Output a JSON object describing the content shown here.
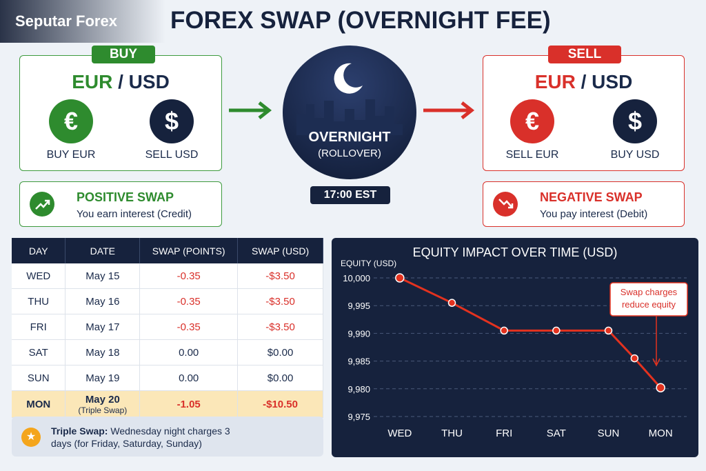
{
  "header": {
    "brand": "Seputar Forex",
    "title": "FOREX SWAP (OVERNIGHT FEE)"
  },
  "buy": {
    "badge": "BUY",
    "pair_base": "EUR",
    "pair_sep": "/",
    "pair_quote": "USD",
    "left_icon": "€",
    "left_label": "BUY EUR",
    "right_icon": "$",
    "right_label": "SELL USD"
  },
  "sell": {
    "badge": "SELL",
    "pair_base": "EUR",
    "pair_sep": "/",
    "pair_quote": "USD",
    "left_icon": "€",
    "left_label": "SELL EUR",
    "right_icon": "$",
    "right_label": "BUY USD"
  },
  "overnight": {
    "title": "OVERNIGHT",
    "subtitle": "(ROLLOVER)",
    "time": "17:00 EST"
  },
  "positive": {
    "title": "POSITIVE SWAP",
    "text": "You earn interest (Credit)"
  },
  "negative": {
    "title": "NEGATIVE SWAP",
    "text": "You pay interest (Debit)"
  },
  "table": {
    "headers": [
      "DAY",
      "DATE",
      "SWAP (POINTS)",
      "SWAP (USD)"
    ],
    "rows": [
      [
        "WED",
        "May 15",
        "-0.35",
        "-$3.50"
      ],
      [
        "THU",
        "May 16",
        "-0.35",
        "-$3.50"
      ],
      [
        "FRI",
        "May 17",
        "-0.35",
        "-$3.50"
      ],
      [
        "SAT",
        "May 18",
        "0.00",
        "$0.00"
      ],
      [
        "SUN",
        "May 19",
        "0.00",
        "$0.00"
      ],
      [
        "MON",
        "May 20",
        "-1.05",
        "-$10.50"
      ]
    ],
    "triple_note": "(Triple Swap)"
  },
  "footnote": {
    "bold": "Triple Swap:",
    "text": "Wednesday night charges 3 days (for Friday, Saturday, Sunday)"
  },
  "chart_data": {
    "type": "line",
    "title": "EQUITY IMPACT OVER TIME (USD)",
    "y_label": "EQUITY (USD)",
    "annotation": "Swap charges reduce equity",
    "x": [
      0,
      1,
      2,
      3,
      4,
      4.5,
      5
    ],
    "values": [
      10000,
      9995.5,
      9990.5,
      9990.5,
      9990.5,
      9985.5,
      9980.2
    ],
    "color": "#e3321f",
    "xlim": [
      -0.5,
      5.5
    ],
    "xticks": [
      {
        "value": 0,
        "label": "WED"
      },
      {
        "value": 1,
        "label": "THU"
      },
      {
        "value": 2,
        "label": "FRI"
      },
      {
        "value": 3,
        "label": "SAT"
      },
      {
        "value": 4,
        "label": "SUN"
      },
      {
        "value": 5,
        "label": "MON"
      }
    ],
    "ylim": [
      9975,
      10000
    ],
    "yticks": [
      {
        "value": 9975,
        "label": "9,975"
      },
      {
        "value": 9980,
        "label": "9,980"
      },
      {
        "value": 9985,
        "label": "9,985"
      },
      {
        "value": 9990,
        "label": "9,990"
      },
      {
        "value": 9995,
        "label": "9,995"
      },
      {
        "value": 10000,
        "label": "10,000"
      }
    ],
    "grid": true
  }
}
